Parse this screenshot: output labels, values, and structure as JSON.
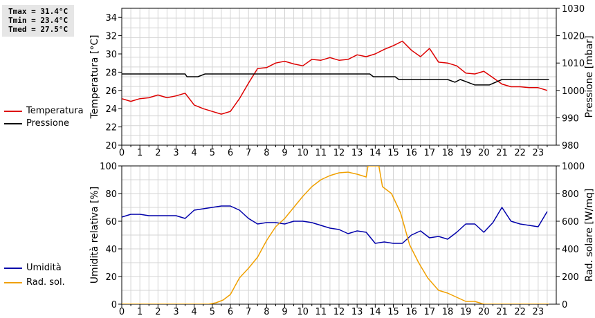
{
  "stats": {
    "tmax": "Tmax = 31.4°C",
    "tmin": "Tmin = 23.4°C",
    "tmed": "Tmed = 27.5°C"
  },
  "chart_data": [
    {
      "type": "line",
      "xlim": [
        0,
        24
      ],
      "x_ticks": [
        "0",
        "1",
        "2",
        "3",
        "4",
        "5",
        "6",
        "7",
        "8",
        "9",
        "10",
        "11",
        "12",
        "13",
        "14",
        "15",
        "16",
        "17",
        "18",
        "19",
        "20",
        "21",
        "22",
        "23"
      ],
      "ylabel_left": "Temperatura [°C]",
      "ylim_left": [
        20,
        35
      ],
      "y_ticks_left": [
        "20",
        "22",
        "24",
        "26",
        "28",
        "30",
        "32",
        "34"
      ],
      "ylabel_right": "Pressione [mbar]",
      "ylim_right": [
        980,
        1030
      ],
      "y_ticks_right": [
        "980",
        "990",
        "1000",
        "1010",
        "1020",
        "1030"
      ],
      "grid": true,
      "series": [
        {
          "name": "Temperatura",
          "axis": "left",
          "color": "#dd0000",
          "x": [
            0,
            0.5,
            1,
            1.5,
            2,
            2.5,
            3,
            3.5,
            4,
            4.5,
            5,
            5.5,
            6,
            6.5,
            7,
            7.5,
            8,
            8.5,
            9,
            9.5,
            10,
            10.5,
            11,
            11.5,
            12,
            12.5,
            13,
            13.5,
            14,
            14.5,
            15,
            15.5,
            16,
            16.5,
            17,
            17.5,
            18,
            18.5,
            19,
            19.5,
            20,
            20.5,
            21,
            21.5,
            22,
            22.5,
            23,
            23.5
          ],
          "y": [
            25.1,
            24.8,
            25.1,
            25.2,
            25.5,
            25.2,
            25.4,
            25.7,
            24.4,
            24.0,
            23.7,
            23.4,
            23.7,
            25.1,
            26.8,
            28.4,
            28.5,
            29.0,
            29.2,
            28.9,
            28.7,
            29.4,
            29.3,
            29.6,
            29.3,
            29.4,
            29.9,
            29.7,
            30.0,
            30.5,
            30.9,
            31.4,
            30.4,
            29.7,
            30.6,
            29.1,
            29.0,
            28.7,
            27.9,
            27.8,
            28.1,
            27.4,
            26.7,
            26.4,
            26.4,
            26.3,
            26.3,
            26.0
          ]
        },
        {
          "name": "Pressione",
          "axis": "right",
          "color": "#000000",
          "x": [
            0,
            3.5,
            3.6,
            4.2,
            4.6,
            13.7,
            13.9,
            15.1,
            15.3,
            18,
            18.4,
            18.7,
            19.1,
            19.5,
            20.3,
            21,
            23.6
          ],
          "y": [
            1006,
            1006,
            1005,
            1005,
            1006,
            1006,
            1005,
            1005,
            1004,
            1004,
            1003,
            1004,
            1003,
            1002,
            1002,
            1004,
            1004
          ]
        }
      ]
    },
    {
      "type": "line",
      "xlim": [
        0,
        24
      ],
      "x_ticks": [
        "0",
        "1",
        "2",
        "3",
        "4",
        "5",
        "6",
        "7",
        "8",
        "9",
        "10",
        "11",
        "12",
        "13",
        "14",
        "15",
        "16",
        "17",
        "18",
        "19",
        "20",
        "21",
        "22",
        "23"
      ],
      "ylabel_left": "Umidità relativa [%]",
      "ylim_left": [
        0,
        100
      ],
      "y_ticks_left": [
        "0",
        "20",
        "40",
        "60",
        "80",
        "100"
      ],
      "ylabel_right": "Rad. solare [W/mq]",
      "ylim_right": [
        0,
        1000
      ],
      "y_ticks_right": [
        "0",
        "200",
        "400",
        "600",
        "800",
        "1000"
      ],
      "grid": true,
      "series": [
        {
          "name": "Umidità",
          "axis": "left",
          "color": "#0000aa",
          "x": [
            0,
            0.5,
            1,
            1.5,
            2,
            2.5,
            3,
            3.5,
            4,
            4.5,
            5,
            5.5,
            6,
            6.5,
            7,
            7.5,
            8,
            8.5,
            9,
            9.5,
            10,
            10.5,
            11,
            11.5,
            12,
            12.5,
            13,
            13.5,
            14,
            14.5,
            15,
            15.5,
            16,
            16.5,
            17,
            17.5,
            18,
            18.5,
            19,
            19.5,
            20,
            20.5,
            21,
            21.5,
            22,
            22.5,
            23,
            23.5
          ],
          "y": [
            63,
            65,
            65,
            64,
            64,
            64,
            64,
            62,
            68,
            69,
            70,
            71,
            71,
            68,
            62,
            58,
            59,
            59,
            58,
            60,
            60,
            59,
            57,
            55,
            54,
            51,
            53,
            52,
            44,
            45,
            44,
            44,
            50,
            53,
            48,
            49,
            47,
            52,
            58,
            58,
            52,
            59,
            70,
            60,
            58,
            57,
            56,
            67
          ]
        },
        {
          "name": "Rad. sol.",
          "axis": "right",
          "color": "#f0a000",
          "x": [
            0,
            4.8,
            5.2,
            5.6,
            6,
            6.5,
            7,
            7.5,
            8,
            8.5,
            9,
            9.5,
            10,
            10.5,
            11,
            11.5,
            12,
            12.5,
            13,
            13.5,
            13.6,
            14.2,
            14.4,
            14.9,
            15.4,
            15.9,
            16.4,
            16.9,
            17.5,
            18,
            18.5,
            19,
            19.5,
            20,
            20.5,
            23.6
          ],
          "y": [
            0,
            0,
            10,
            30,
            70,
            190,
            260,
            340,
            460,
            560,
            620,
            700,
            780,
            850,
            900,
            930,
            950,
            955,
            940,
            920,
            1000,
            1000,
            850,
            800,
            660,
            430,
            300,
            190,
            100,
            80,
            50,
            20,
            20,
            0,
            0,
            0
          ]
        }
      ]
    }
  ]
}
